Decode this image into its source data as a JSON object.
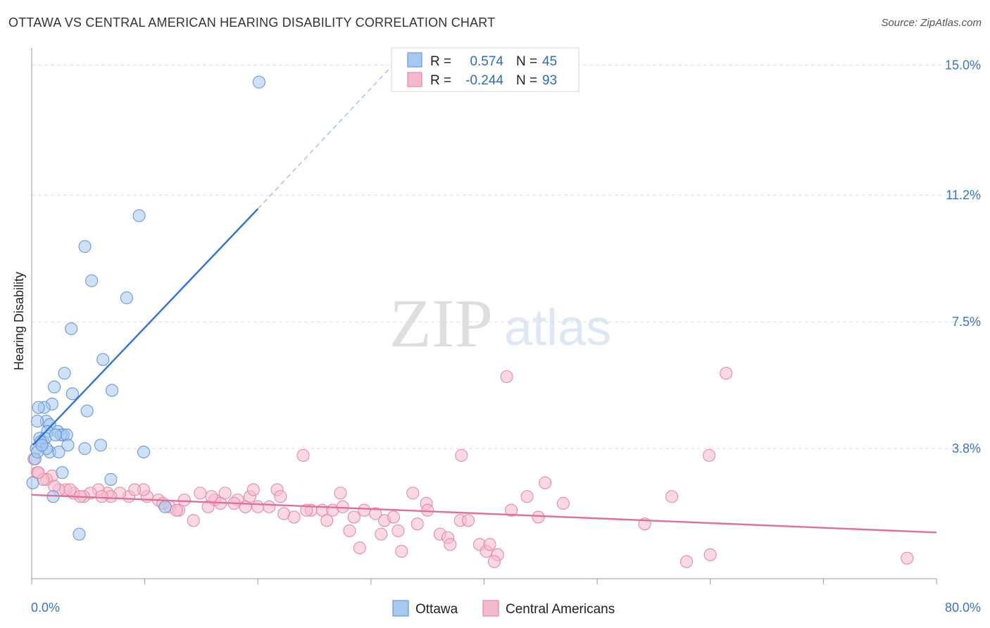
{
  "header": {
    "title": "OTTAWA VS CENTRAL AMERICAN HEARING DISABILITY CORRELATION CHART",
    "source": "Source: ZipAtlas.com"
  },
  "watermark": {
    "zip": "ZIP",
    "atlas": "atlas"
  },
  "stats": [
    {
      "r_label": "R =",
      "r_value": "0.574",
      "n_label": "N =",
      "n_value": "45",
      "color": "#a8c8f0",
      "stroke": "#6a9ad8"
    },
    {
      "r_label": "R =",
      "r_value": "-0.244",
      "n_label": "N =",
      "n_value": "93",
      "color": "#f5b9cc",
      "stroke": "#e68aa7"
    }
  ],
  "legend": [
    {
      "label": "Ottawa",
      "color": "#a8c8f0",
      "stroke": "#6a9ad8"
    },
    {
      "label": "Central Americans",
      "color": "#f5b9cc",
      "stroke": "#e68aa7"
    }
  ],
  "chart_data": {
    "type": "scatter",
    "title": "OTTAWA VS CENTRAL AMERICAN HEARING DISABILITY CORRELATION CHART",
    "xlabel": "",
    "ylabel": "Hearing Disability",
    "xlim": [
      0,
      80
    ],
    "ylim": [
      0,
      15.5
    ],
    "x_tick_labels": [
      "0.0%",
      "80.0%"
    ],
    "y_ticks": [
      3.8,
      7.5,
      11.2,
      15.0
    ],
    "y_tick_labels": [
      "3.8%",
      "7.5%",
      "11.2%",
      "15.0%"
    ],
    "grid": true,
    "legend_position": "bottom-center",
    "series": [
      {
        "name": "Ottawa",
        "color": "#6a9ad8",
        "fill": "#a8c8f0",
        "trend": {
          "x": [
            0.1,
            20.0
          ],
          "y": [
            3.9,
            10.8
          ],
          "extend_dashed_to": [
            32.5,
            15.2
          ]
        },
        "points": [
          [
            20.1,
            14.5
          ],
          [
            9.5,
            10.6
          ],
          [
            4.7,
            9.7
          ],
          [
            5.3,
            8.7
          ],
          [
            8.4,
            8.2
          ],
          [
            3.5,
            7.3
          ],
          [
            6.3,
            6.4
          ],
          [
            2.9,
            6.0
          ],
          [
            2.0,
            5.6
          ],
          [
            7.1,
            5.5
          ],
          [
            3.6,
            5.4
          ],
          [
            1.8,
            5.1
          ],
          [
            1.1,
            5.0
          ],
          [
            0.6,
            5.0
          ],
          [
            4.9,
            4.9
          ],
          [
            1.3,
            4.6
          ],
          [
            0.5,
            4.6
          ],
          [
            1.6,
            4.5
          ],
          [
            1.4,
            4.3
          ],
          [
            2.3,
            4.3
          ],
          [
            2.8,
            4.2
          ],
          [
            2.6,
            4.2
          ],
          [
            3.1,
            4.2
          ],
          [
            0.7,
            4.1
          ],
          [
            1.0,
            4.0
          ],
          [
            1.2,
            4.1
          ],
          [
            3.2,
            3.9
          ],
          [
            6.1,
            3.9
          ],
          [
            0.4,
            3.8
          ],
          [
            1.6,
            3.7
          ],
          [
            4.7,
            3.8
          ],
          [
            9.9,
            3.7
          ],
          [
            2.4,
            3.7
          ],
          [
            0.3,
            3.5
          ],
          [
            2.7,
            3.1
          ],
          [
            7.0,
            2.9
          ],
          [
            0.1,
            2.8
          ],
          [
            1.9,
            2.4
          ],
          [
            11.8,
            2.1
          ],
          [
            4.2,
            1.3
          ],
          [
            0.8,
            4.0
          ],
          [
            1.3,
            3.8
          ],
          [
            0.5,
            3.7
          ],
          [
            2.1,
            4.2
          ],
          [
            0.9,
            3.9
          ]
        ]
      },
      {
        "name": "Central Americans",
        "color": "#e68aa7",
        "fill": "#f5b9cc",
        "trend": {
          "x": [
            0,
            80
          ],
          "y": [
            2.45,
            1.35
          ]
        },
        "points": [
          [
            42.0,
            5.9
          ],
          [
            61.4,
            6.0
          ],
          [
            24.0,
            3.6
          ],
          [
            38.0,
            3.6
          ],
          [
            59.9,
            3.6
          ],
          [
            45.4,
            2.8
          ],
          [
            21.7,
            2.6
          ],
          [
            27.3,
            2.5
          ],
          [
            56.6,
            2.4
          ],
          [
            43.8,
            2.4
          ],
          [
            33.7,
            2.5
          ],
          [
            34.9,
            2.2
          ],
          [
            47.0,
            2.2
          ],
          [
            22.0,
            2.4
          ],
          [
            18.2,
            2.3
          ],
          [
            19.3,
            2.4
          ],
          [
            16.2,
            2.3
          ],
          [
            19.6,
            2.6
          ],
          [
            13.5,
            2.3
          ],
          [
            10.2,
            2.4
          ],
          [
            11.2,
            2.3
          ],
          [
            8.6,
            2.4
          ],
          [
            7.8,
            2.5
          ],
          [
            6.7,
            2.5
          ],
          [
            5.9,
            2.6
          ],
          [
            5.2,
            2.5
          ],
          [
            4.6,
            2.4
          ],
          [
            3.7,
            2.5
          ],
          [
            3.0,
            2.6
          ],
          [
            2.4,
            2.6
          ],
          [
            1.8,
            3.0
          ],
          [
            1.3,
            2.9
          ],
          [
            0.5,
            3.1
          ],
          [
            0.2,
            3.5
          ],
          [
            9.9,
            2.6
          ],
          [
            11.6,
            2.2
          ],
          [
            12.2,
            2.1
          ],
          [
            13.0,
            2.0
          ],
          [
            14.3,
            1.7
          ],
          [
            15.6,
            2.1
          ],
          [
            16.7,
            2.2
          ],
          [
            17.9,
            2.2
          ],
          [
            18.9,
            2.1
          ],
          [
            20.0,
            2.1
          ],
          [
            21.0,
            2.1
          ],
          [
            22.3,
            1.9
          ],
          [
            23.2,
            1.8
          ],
          [
            24.7,
            2.0
          ],
          [
            25.7,
            2.0
          ],
          [
            26.6,
            2.0
          ],
          [
            27.5,
            2.1
          ],
          [
            28.5,
            1.8
          ],
          [
            29.4,
            2.0
          ],
          [
            30.4,
            1.9
          ],
          [
            31.2,
            1.7
          ],
          [
            32.0,
            1.8
          ],
          [
            32.4,
            1.4
          ],
          [
            30.9,
            1.3
          ],
          [
            28.1,
            1.4
          ],
          [
            29.0,
            0.9
          ],
          [
            32.7,
            0.8
          ],
          [
            34.1,
            1.6
          ],
          [
            35.0,
            2.0
          ],
          [
            36.1,
            1.3
          ],
          [
            36.8,
            1.2
          ],
          [
            37.0,
            1.0
          ],
          [
            37.9,
            1.7
          ],
          [
            38.6,
            1.7
          ],
          [
            39.6,
            1.0
          ],
          [
            40.2,
            0.8
          ],
          [
            40.5,
            1.0
          ],
          [
            41.2,
            0.7
          ],
          [
            40.9,
            0.5
          ],
          [
            42.4,
            2.0
          ],
          [
            44.8,
            1.8
          ],
          [
            54.2,
            1.6
          ],
          [
            57.9,
            0.5
          ],
          [
            60.0,
            0.7
          ],
          [
            77.4,
            0.6
          ],
          [
            15.9,
            2.4
          ],
          [
            17.1,
            2.5
          ],
          [
            14.9,
            2.5
          ],
          [
            12.8,
            2.0
          ],
          [
            9.1,
            2.6
          ],
          [
            7.0,
            2.4
          ],
          [
            6.2,
            2.4
          ],
          [
            4.3,
            2.4
          ],
          [
            3.4,
            2.6
          ],
          [
            2.0,
            2.7
          ],
          [
            1.0,
            2.9
          ],
          [
            0.6,
            3.1
          ],
          [
            24.3,
            2.0
          ],
          [
            26.1,
            1.7
          ]
        ]
      }
    ]
  }
}
